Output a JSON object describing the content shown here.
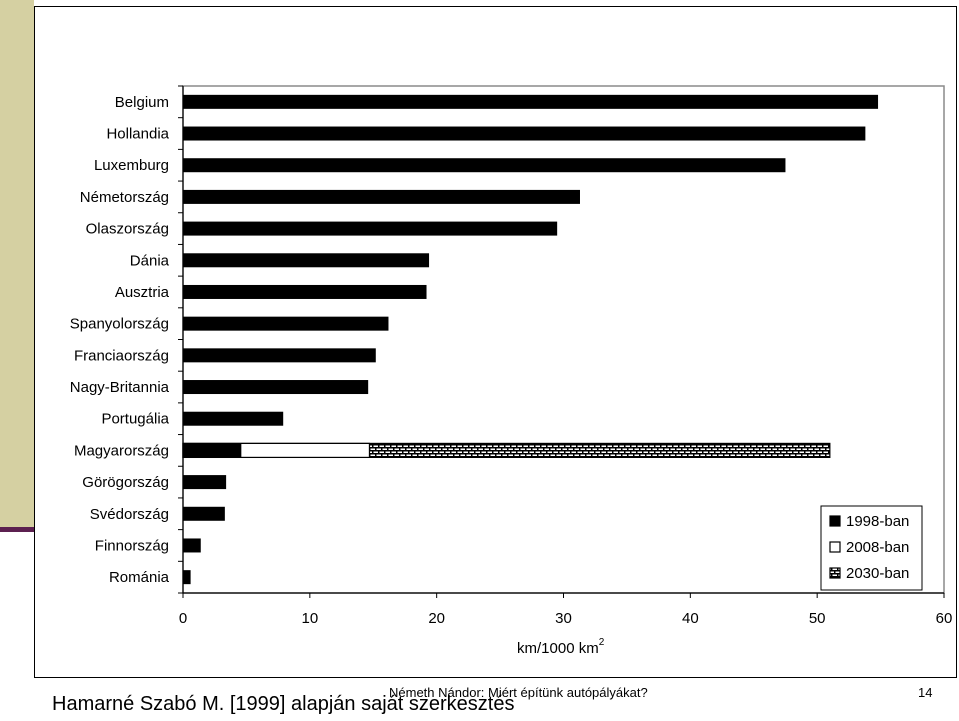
{
  "slide": {
    "footer_title": "Németh Nándor: Miért építünk autópályákat?",
    "page_number": "14",
    "source_note": "Hamarné Szabó M. [1999] alapján saját szerkesztés",
    "colors": {
      "accent_olive": "#d5d0a2",
      "accent_purple": "#5c2050"
    }
  },
  "chart_data": {
    "type": "bar",
    "orientation": "horizontal",
    "categories": [
      "Belgium",
      "Hollandia",
      "Luxemburg",
      "Németország",
      "Olaszország",
      "Dánia",
      "Ausztria",
      "Spanyolország",
      "Franciaország",
      "Nagy-Britannia",
      "Portugália",
      "Magyarország",
      "Görögország",
      "Svédország",
      "Finnország",
      "Románia"
    ],
    "series": [
      {
        "name": "1998-ban",
        "values": [
          54.8,
          53.8,
          47.5,
          31.3,
          29.5,
          19.4,
          19.2,
          16.2,
          15.2,
          14.6,
          7.9,
          4.6,
          3.4,
          3.3,
          1.4,
          0.6
        ],
        "color": "#000000",
        "pattern": "solid"
      },
      {
        "name": "2008-ban",
        "values": [
          null,
          null,
          null,
          null,
          null,
          null,
          null,
          null,
          null,
          null,
          null,
          14.7,
          null,
          null,
          null,
          null
        ],
        "color": "#ffffff",
        "pattern": "outline"
      },
      {
        "name": "2030-ban",
        "values": [
          null,
          null,
          null,
          null,
          null,
          null,
          null,
          null,
          null,
          null,
          null,
          51.0,
          null,
          null,
          null,
          null
        ],
        "color": "#000000",
        "pattern": "brick"
      }
    ],
    "xlabel": "km/1000 km",
    "xlabel_superscript": "2",
    "xlim": [
      0,
      60
    ],
    "xticks": [
      0,
      10,
      20,
      30,
      40,
      50,
      60
    ],
    "grid": false,
    "legend_position": "bottom-right"
  }
}
